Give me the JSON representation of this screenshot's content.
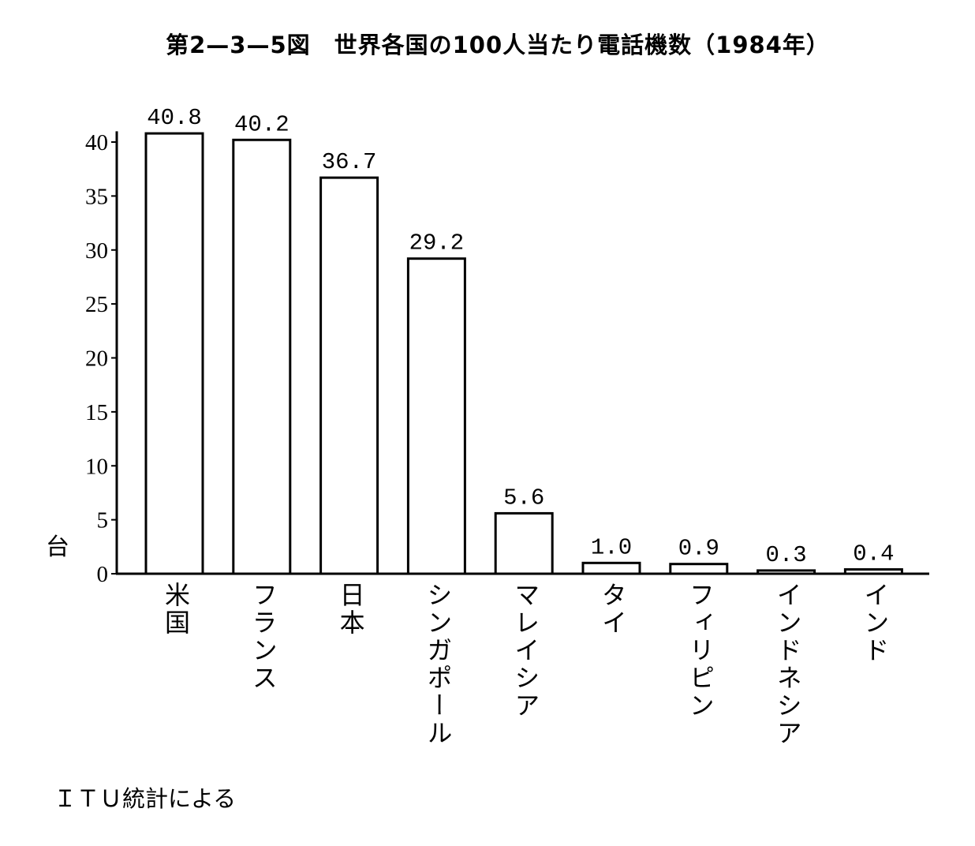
{
  "source_note": "ＩＴＵ統計による",
  "chart_data": {
    "type": "bar",
    "title": "第2—3—5図　世界各国の100人当たり電話機数（1984年）",
    "xlabel": "",
    "ylabel": "台",
    "categories": [
      "米国",
      "フランス",
      "日本",
      "シンガポール",
      "マレイシア",
      "タイ",
      "フィリピン",
      "インドネシア",
      "インド"
    ],
    "values": [
      40.8,
      40.2,
      36.7,
      29.2,
      5.6,
      1.0,
      0.9,
      0.3,
      0.4
    ],
    "value_labels": [
      "40.8",
      "40.2",
      "36.7",
      "29.2",
      "5.6",
      "1.0",
      "0.9",
      "0.3",
      "0.4"
    ],
    "ylim": [
      0,
      41
    ],
    "yticks": [
      0,
      5,
      10,
      15,
      20,
      25,
      30,
      35,
      40
    ],
    "ytick_labels": [
      "0",
      "5",
      "10",
      "15",
      "20",
      "25",
      "30",
      "35",
      "40"
    ],
    "grid": false,
    "colors": {
      "background": "#ffffff",
      "bar_fill": "#ffffff",
      "bar_outline": "#000000",
      "text": "#000000"
    }
  }
}
